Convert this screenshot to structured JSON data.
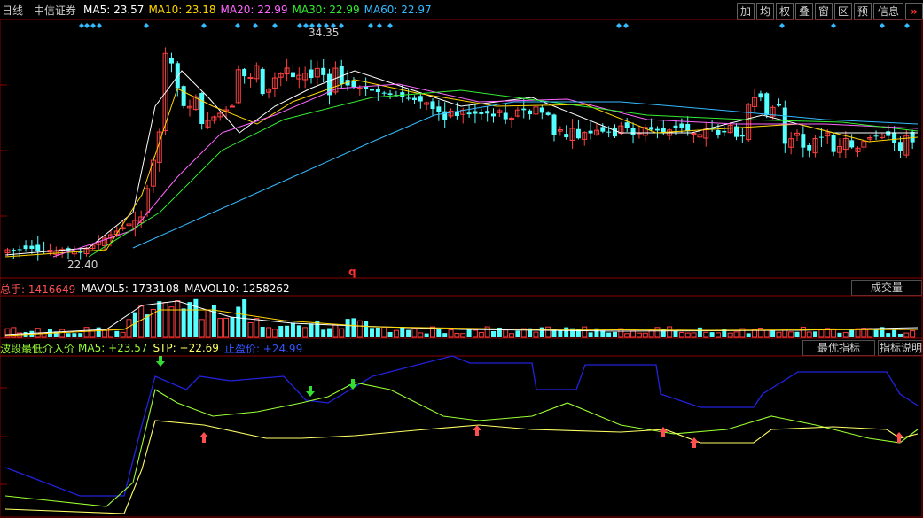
{
  "header": {
    "period": "日线",
    "stock": "中信证券",
    "ma": [
      {
        "label": "MA5: 23.57",
        "color": "#ffffff"
      },
      {
        "label": "MA10: 23.18",
        "color": "#ffd700"
      },
      {
        "label": "MA20: 22.99",
        "color": "#ff66ff"
      },
      {
        "label": "MA30: 22.99",
        "color": "#33ee33"
      },
      {
        "label": "MA60: 22.97",
        "color": "#33bbff"
      }
    ]
  },
  "toolbar": {
    "items": [
      "加",
      "均",
      "权",
      "叠",
      "窗",
      "区",
      "预",
      "信息"
    ],
    "close": "»"
  },
  "price_panel": {
    "high_label": "34.35",
    "low_label": "22.40",
    "marker": "q"
  },
  "volume_panel": {
    "total_label": "总手: 1416649",
    "mavol5_label": "MAVOL5: 1733108",
    "mavol10_label": "MAVOL10: 1258262",
    "button": "成交量"
  },
  "indicator_panel": {
    "title": "波段最低介入价",
    "ma5_label": "MA5: +23.57",
    "stp_label": "STP: +22.69",
    "stop_label": "止盈价: +24.99",
    "btn_best": "最优指标",
    "btn_help": "指标说明"
  },
  "colors": {
    "up": "#ff4040",
    "down": "#54ffff",
    "grid": "#8b0000",
    "ind_blue": "#2222dd",
    "ind_green": "#99ff33",
    "ind_yellow": "#ffff66",
    "arrow_up": "#ff5050",
    "arrow_down": "#33dd33"
  }
}
